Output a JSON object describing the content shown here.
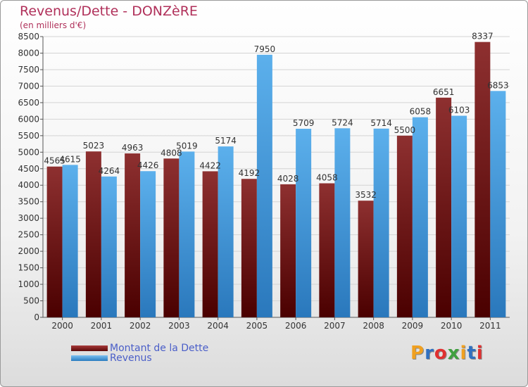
{
  "header": {
    "title": "Revenus/Dette - DONZèRE",
    "subtitle": "(en milliers d'€)"
  },
  "chart_data": {
    "type": "bar",
    "categories": [
      "2000",
      "2001",
      "2002",
      "2003",
      "2004",
      "2005",
      "2006",
      "2007",
      "2008",
      "2009",
      "2010",
      "2011"
    ],
    "series": [
      {
        "name": "Montant de la Dette",
        "values": [
          4565,
          5023,
          4963,
          4808,
          4422,
          4192,
          4028,
          4058,
          3532,
          5500,
          6651,
          8337
        ],
        "color": "#7a1e1e"
      },
      {
        "name": "Revenus",
        "values": [
          4615,
          4264,
          4426,
          5019,
          5174,
          7950,
          5709,
          5724,
          5714,
          6058,
          6103,
          6853
        ],
        "color": "#4ea6e6"
      }
    ],
    "yticks": [
      0,
      500,
      1000,
      1500,
      2000,
      2500,
      3000,
      3500,
      4000,
      4500,
      5000,
      5500,
      6000,
      6500,
      7000,
      7500,
      8000,
      8500
    ],
    "ylim": [
      0,
      8500
    ],
    "grid": true,
    "legend_position": "bottom-left"
  },
  "logo": {
    "text": "Proxiti",
    "letter_colors": [
      "#f0a020",
      "#3070c0",
      "#e03030",
      "#40a040",
      "#f0a020",
      "#3070c0",
      "#e03030"
    ]
  }
}
